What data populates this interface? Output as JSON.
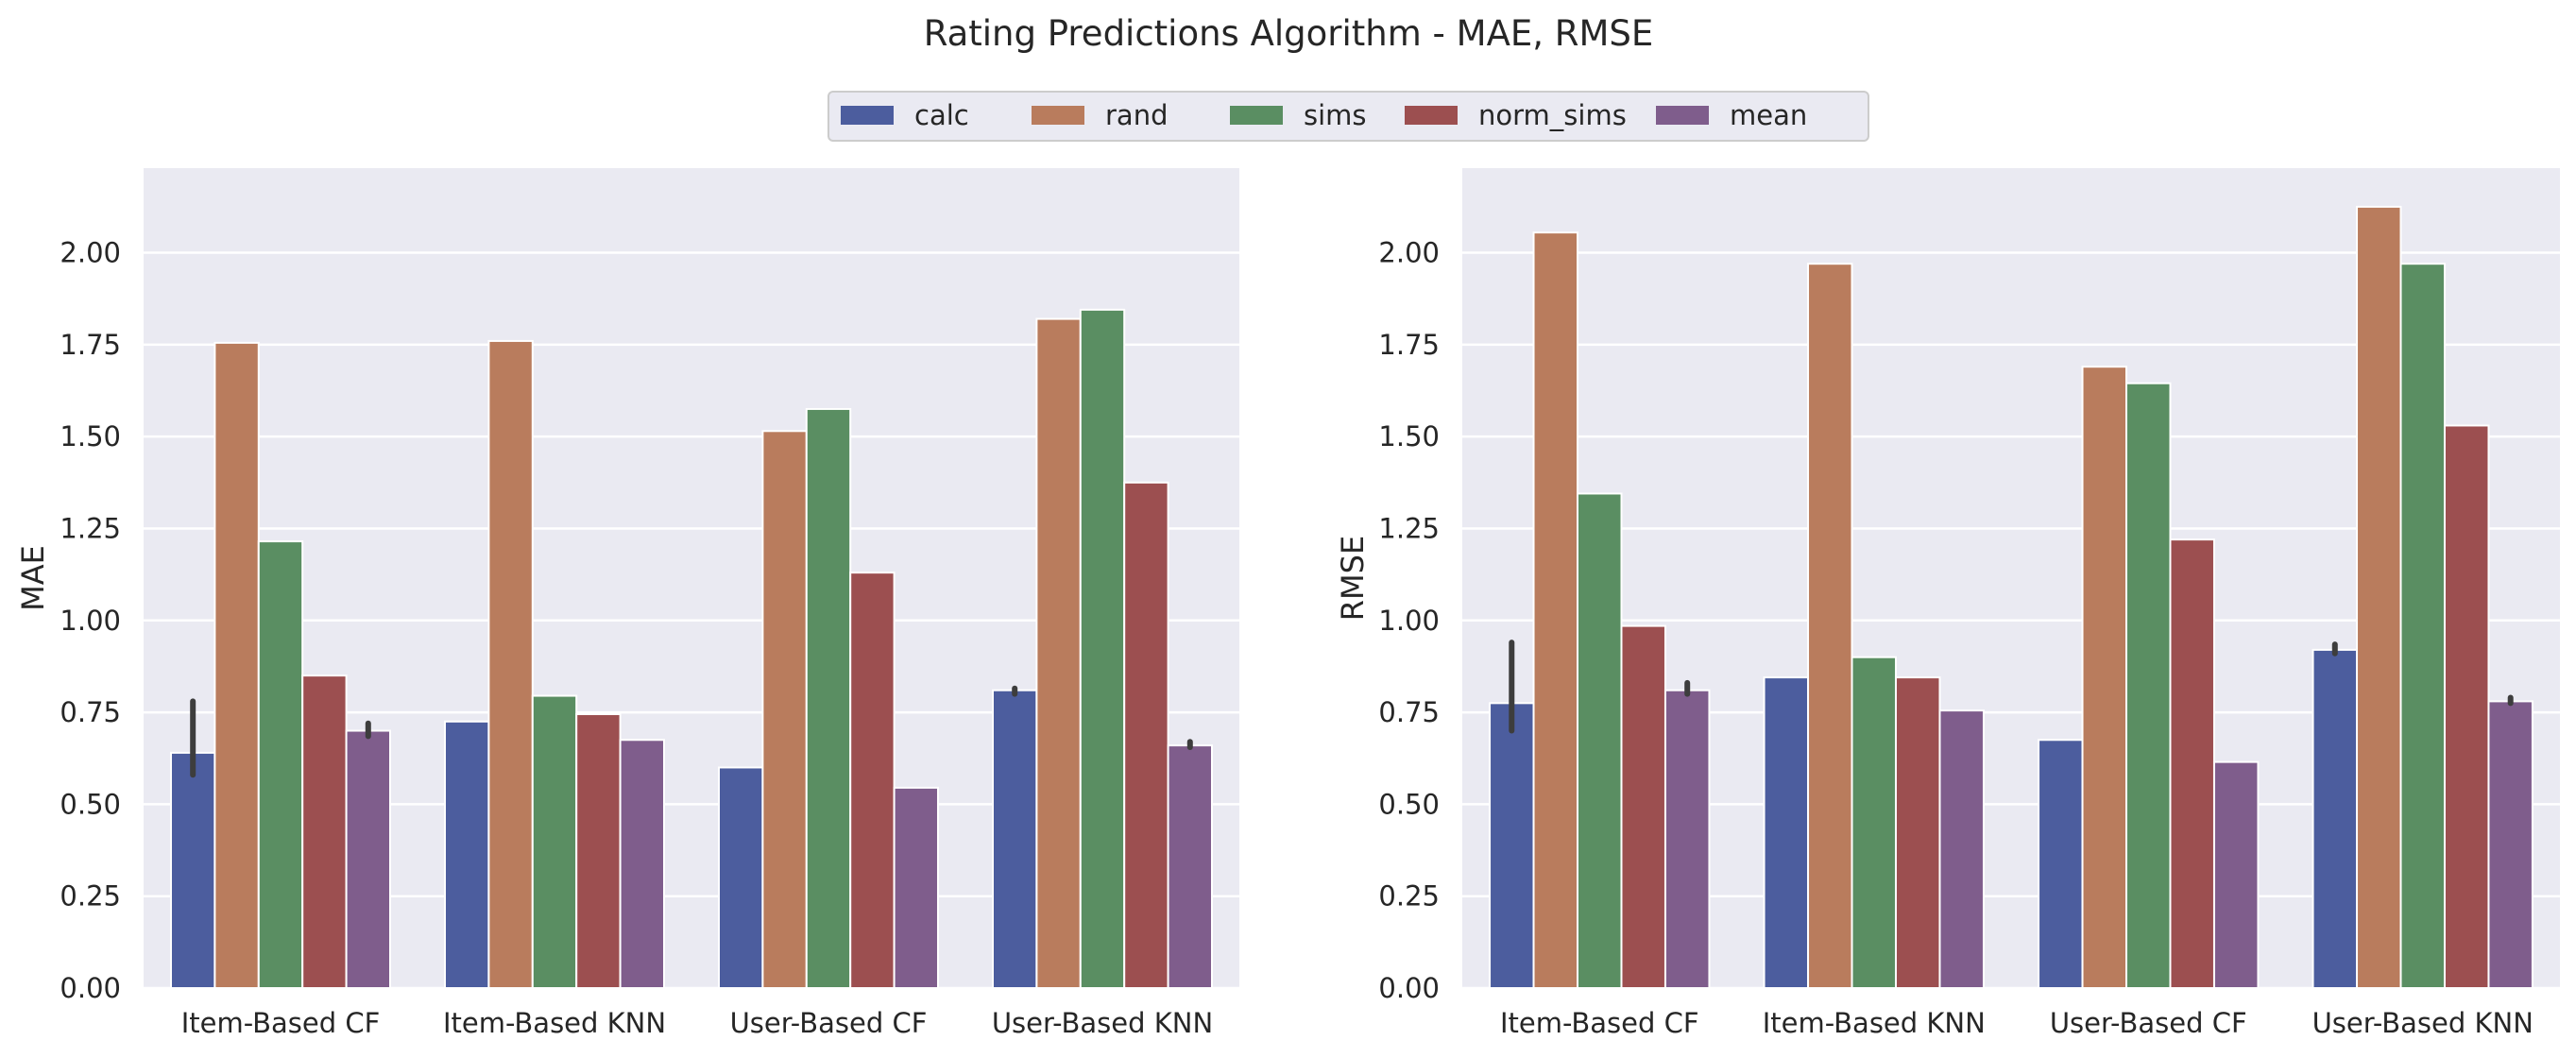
{
  "figure": {
    "title": "Rating Predictions Algorithm - MAE, RMSE"
  },
  "legend": {
    "items": [
      {
        "label": "calc",
        "color": "#4c5d9e"
      },
      {
        "label": "rand",
        "color": "#b97c5d"
      },
      {
        "label": "sims",
        "color": "#5a8e62"
      },
      {
        "label": "norm_sims",
        "color": "#9c4f50"
      },
      {
        "label": "mean",
        "color": "#7f5d8c"
      }
    ]
  },
  "chart_data": [
    {
      "type": "bar",
      "title": "",
      "xlabel": "",
      "ylabel": "MAE",
      "ylim": [
        0,
        2.23
      ],
      "yticks": [
        0.0,
        0.25,
        0.5,
        0.75,
        1.0,
        1.25,
        1.5,
        1.75,
        2.0
      ],
      "ytick_labels": [
        "0.00",
        "0.25",
        "0.50",
        "0.75",
        "1.00",
        "1.25",
        "1.50",
        "1.75",
        "2.00"
      ],
      "grid": true,
      "categories": [
        "Item-Based CF",
        "Item-Based KNN",
        "User-Based CF",
        "User-Based KNN"
      ],
      "series": [
        {
          "name": "calc",
          "values": [
            0.64,
            0.725,
            0.6,
            0.81
          ],
          "error": [
            [
              0.58,
              0.78
            ],
            null,
            null,
            [
              0.8,
              0.815
            ]
          ]
        },
        {
          "name": "rand",
          "values": [
            1.755,
            1.76,
            1.515,
            1.82
          ],
          "error": [
            null,
            null,
            null,
            null
          ]
        },
        {
          "name": "sims",
          "values": [
            1.215,
            0.795,
            1.575,
            1.845
          ],
          "error": [
            null,
            null,
            null,
            null
          ]
        },
        {
          "name": "norm_sims",
          "values": [
            0.85,
            0.745,
            1.13,
            1.375
          ],
          "error": [
            null,
            null,
            null,
            null
          ]
        },
        {
          "name": "mean",
          "values": [
            0.7,
            0.675,
            0.545,
            0.66
          ],
          "error": [
            [
              0.685,
              0.72
            ],
            null,
            null,
            [
              0.655,
              0.67
            ]
          ]
        }
      ]
    },
    {
      "type": "bar",
      "title": "",
      "xlabel": "",
      "ylabel": "RMSE",
      "ylim": [
        0,
        2.23
      ],
      "yticks": [
        0.0,
        0.25,
        0.5,
        0.75,
        1.0,
        1.25,
        1.5,
        1.75,
        2.0
      ],
      "ytick_labels": [
        "0.00",
        "0.25",
        "0.50",
        "0.75",
        "1.00",
        "1.25",
        "1.50",
        "1.75",
        "2.00"
      ],
      "grid": true,
      "categories": [
        "Item-Based CF",
        "Item-Based KNN",
        "User-Based CF",
        "User-Based KNN"
      ],
      "series": [
        {
          "name": "calc",
          "values": [
            0.775,
            0.845,
            0.675,
            0.92
          ],
          "error": [
            [
              0.7,
              0.94
            ],
            null,
            null,
            [
              0.91,
              0.935
            ]
          ]
        },
        {
          "name": "rand",
          "values": [
            2.055,
            1.97,
            1.69,
            2.125
          ],
          "error": [
            null,
            null,
            null,
            null
          ]
        },
        {
          "name": "sims",
          "values": [
            1.345,
            0.9,
            1.645,
            1.97
          ],
          "error": [
            null,
            null,
            null,
            null
          ]
        },
        {
          "name": "norm_sims",
          "values": [
            0.985,
            0.845,
            1.22,
            1.53
          ],
          "error": [
            null,
            null,
            null,
            null
          ]
        },
        {
          "name": "mean",
          "values": [
            0.81,
            0.755,
            0.615,
            0.78
          ],
          "error": [
            [
              0.8,
              0.83
            ],
            null,
            null,
            [
              0.775,
              0.79
            ]
          ]
        }
      ]
    }
  ]
}
